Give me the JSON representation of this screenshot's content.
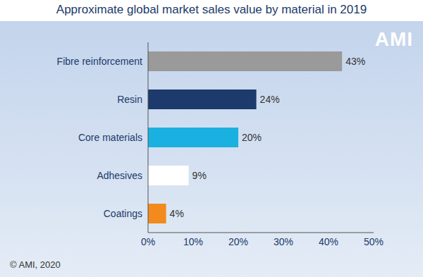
{
  "chart_data": {
    "type": "bar",
    "title": "Approximate global market sales value by material in 2019",
    "annotations": [
      "AMI",
      "© AMI, 2020"
    ],
    "orientation": "horizontal",
    "categories": [
      "Fibre reinforcement",
      "Resin",
      "Core materials",
      "Adhesives",
      "Coatings"
    ],
    "values": [
      43,
      24,
      20,
      9,
      4
    ],
    "value_labels": [
      "43%",
      "24%",
      "20%",
      "9%",
      "4%"
    ],
    "colors": [
      "#9a9a9a",
      "#1c3a6b",
      "#1ab0e0",
      "#ffffff",
      "#f28a1c"
    ],
    "xlim": [
      0,
      50
    ],
    "xticks": [
      {
        "value": 0,
        "label": "0%"
      },
      {
        "value": 10,
        "label": "10%"
      },
      {
        "value": 20,
        "label": "20%"
      },
      {
        "value": 30,
        "label": "30%"
      },
      {
        "value": 40,
        "label": "40%"
      },
      {
        "value": 50,
        "label": "50%"
      }
    ],
    "grid": false,
    "data_labels": true
  }
}
